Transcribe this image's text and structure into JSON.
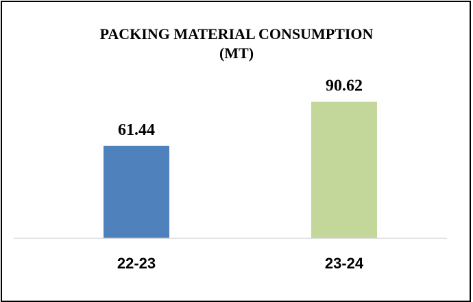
{
  "chart_data": {
    "type": "bar",
    "title": "PACKING MATERIAL CONSUMPTION",
    "subtitle": "(MT)",
    "categories": [
      "22-23",
      "23-24"
    ],
    "values": [
      61.44,
      90.62
    ],
    "colors": [
      "#4f81bd",
      "#c4d79b"
    ],
    "ylim": [
      0,
      100
    ],
    "grid": false,
    "legend": "none"
  }
}
